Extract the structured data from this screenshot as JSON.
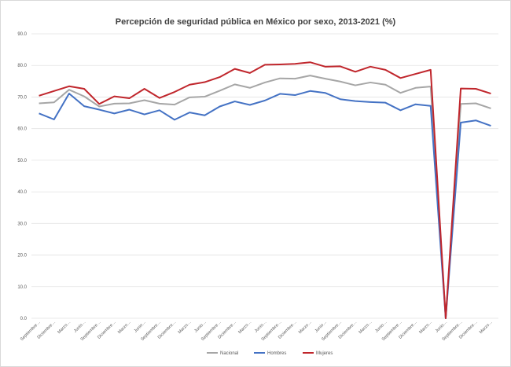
{
  "chart_data": {
    "type": "line",
    "title": "Percepción de seguridad pública en México por sexo, 2013-2021 (%)",
    "xlabel": "",
    "ylabel": "",
    "ylim": [
      0,
      90
    ],
    "yticks": [
      "0.0",
      "10.0",
      "20.0",
      "30.0",
      "40.0",
      "50.0",
      "60.0",
      "70.0",
      "80.0",
      "90.0"
    ],
    "grid": true,
    "legend_position": "bottom",
    "categories": [
      "Septiembre…",
      "Diciembre…",
      "Marzo…",
      "Junio…",
      "Septiembre…",
      "Diciembre…",
      "Marzo…",
      "Junio…",
      "Septiembre…",
      "Diciembre…",
      "Marzo…",
      "Junio…",
      "Septiembre…",
      "Diciembre…",
      "Marzo…",
      "Junio…",
      "Septiembre…",
      "Diciembre…",
      "Marzo…",
      "Junio…",
      "Septiembre…",
      "Diciembre…",
      "Marzo…",
      "Junio…",
      "Septiembre…",
      "Diciembre…",
      "Marzo…",
      "Junio…",
      "Septiembre…",
      "Diciembre…",
      "Marzo…"
    ],
    "series": [
      {
        "name": "Nacional",
        "color": "#a6a6a6",
        "values": [
          68.0,
          68.3,
          72.3,
          70.2,
          67.0,
          67.9,
          68.0,
          69.0,
          67.9,
          67.6,
          69.9,
          70.1,
          72.0,
          74.0,
          72.9,
          74.6,
          75.9,
          75.8,
          76.8,
          75.8,
          74.9,
          73.7,
          74.6,
          73.9,
          71.3,
          72.9,
          73.3,
          0.0,
          67.8,
          68.0,
          66.4
        ]
      },
      {
        "name": "Hombres",
        "color": "#4472c4",
        "values": [
          64.8,
          62.9,
          71.1,
          67.1,
          66.0,
          64.8,
          66.0,
          64.5,
          65.8,
          62.8,
          65.1,
          64.2,
          67.0,
          68.6,
          67.5,
          68.9,
          71.0,
          70.6,
          71.9,
          71.3,
          69.3,
          68.7,
          68.4,
          68.2,
          65.8,
          67.7,
          67.2,
          0.0,
          61.9,
          62.6,
          60.9
        ]
      },
      {
        "name": "Mujeres",
        "color": "#c0262c",
        "values": [
          70.4,
          71.9,
          73.4,
          72.6,
          67.8,
          70.2,
          69.6,
          72.6,
          69.7,
          71.6,
          73.9,
          74.7,
          76.3,
          78.9,
          77.6,
          80.2,
          80.3,
          80.5,
          81.0,
          79.6,
          79.7,
          78.0,
          79.6,
          78.6,
          76.0,
          77.3,
          78.6,
          0.0,
          72.7,
          72.6,
          71.1
        ]
      }
    ]
  }
}
